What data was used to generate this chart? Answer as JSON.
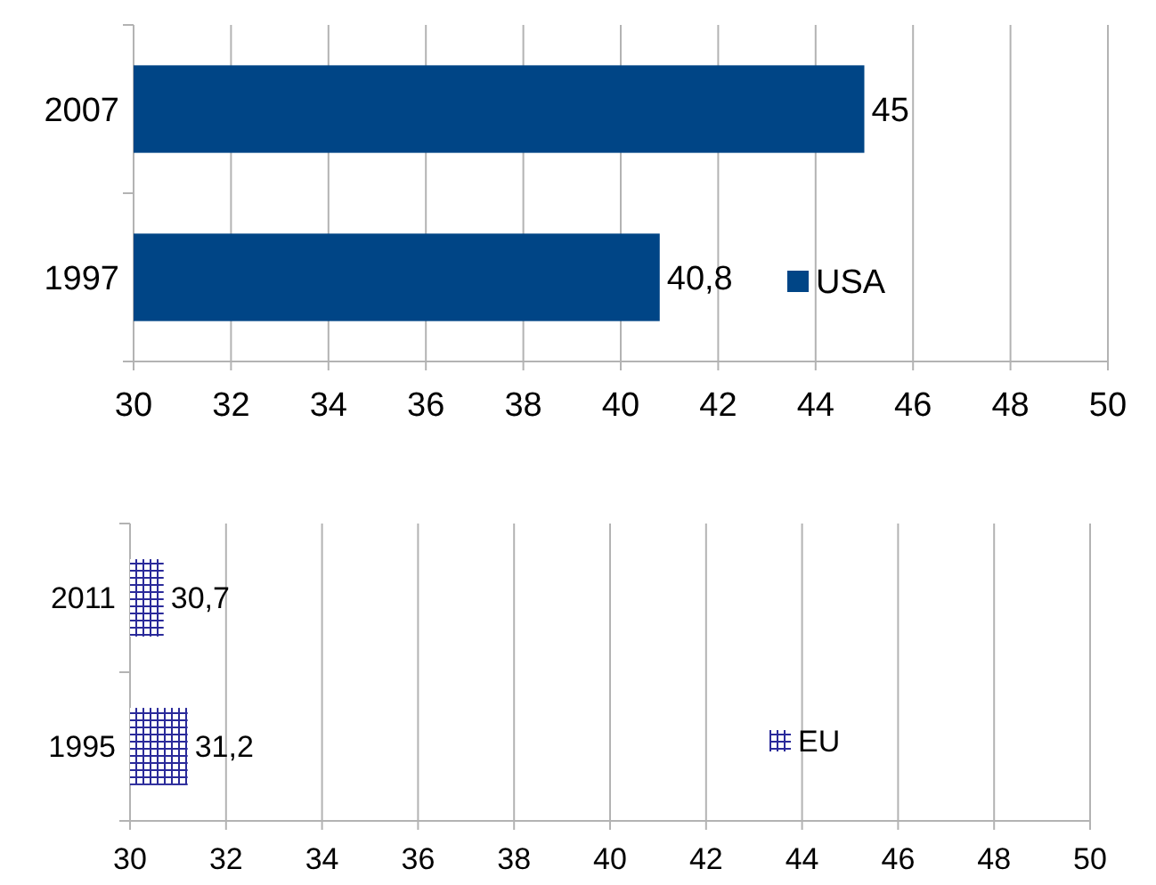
{
  "chart_data": [
    {
      "type": "bar",
      "orientation": "horizontal",
      "categories": [
        "2007",
        "1997"
      ],
      "series": [
        {
          "name": "USA",
          "color": "#004586",
          "values": [
            45,
            40.8
          ],
          "value_labels": [
            "45",
            "40,8"
          ]
        }
      ],
      "xlim": [
        30,
        50
      ],
      "xticks": [
        30,
        32,
        34,
        36,
        38,
        40,
        42,
        44,
        46,
        48,
        50
      ],
      "grid": "x",
      "legend": "bottom right"
    },
    {
      "type": "bar",
      "orientation": "horizontal",
      "categories": [
        "2011",
        "1995"
      ],
      "series": [
        {
          "name": "EU",
          "color": "#2a2a9a",
          "values": [
            30.7,
            31.2
          ],
          "value_labels": [
            "30,7",
            "31,2"
          ]
        }
      ],
      "xlim": [
        30,
        50
      ],
      "xticks": [
        30,
        32,
        34,
        36,
        38,
        40,
        42,
        44,
        46,
        48,
        50
      ],
      "grid": "x",
      "legend": "bottom right"
    }
  ]
}
